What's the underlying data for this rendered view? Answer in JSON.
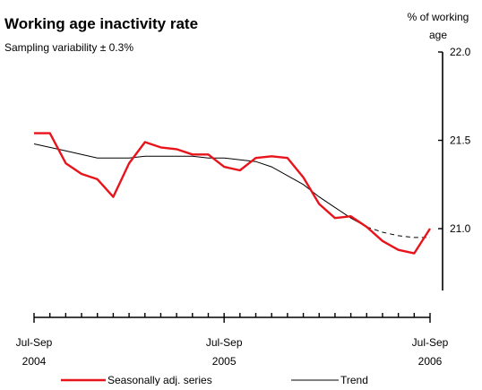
{
  "chart_data": {
    "type": "line",
    "title": "Working age inactivity rate",
    "subtitle": "Sampling variability ± 0.3%",
    "ylabel_lines": [
      "% of working",
      "age"
    ],
    "ylim": [
      20.65,
      22.0
    ],
    "y_ticks": [
      21.0,
      21.5,
      22.0
    ],
    "y_tick_labels": [
      "21.0",
      "21.5",
      "22.0"
    ],
    "x_count": 26,
    "x_tick_labels": [
      {
        "index": 0,
        "lines": [
          "Jul-Sep",
          "2004"
        ]
      },
      {
        "index": 12,
        "lines": [
          "Jul-Sep",
          "2005"
        ]
      },
      {
        "index": 25,
        "lines": [
          "Jul-Sep",
          "2006"
        ]
      }
    ],
    "series": [
      {
        "name": "Seasonally adj. series",
        "color": "#e8141c",
        "style": "solid",
        "values": [
          21.54,
          21.54,
          21.37,
          21.31,
          21.28,
          21.18,
          21.37,
          21.49,
          21.46,
          21.45,
          21.42,
          21.42,
          21.35,
          21.33,
          21.4,
          21.41,
          21.4,
          21.29,
          21.14,
          21.06,
          21.07,
          21.01,
          20.93,
          20.88,
          20.86,
          21.0
        ]
      },
      {
        "name": "Trend",
        "color": "#000000",
        "style": "solid-then-dashed",
        "dashed_from_index": 21,
        "values": [
          21.48,
          21.46,
          21.44,
          21.42,
          21.4,
          21.4,
          21.4,
          21.41,
          21.41,
          21.41,
          21.41,
          21.4,
          21.4,
          21.39,
          21.38,
          21.35,
          21.3,
          21.25,
          21.18,
          21.12,
          21.06,
          21.01,
          20.98,
          20.96,
          20.95,
          20.95
        ]
      }
    ],
    "legend": {
      "placement": "bottom",
      "entries": [
        "Seasonally adj. series",
        "Trend"
      ]
    }
  }
}
